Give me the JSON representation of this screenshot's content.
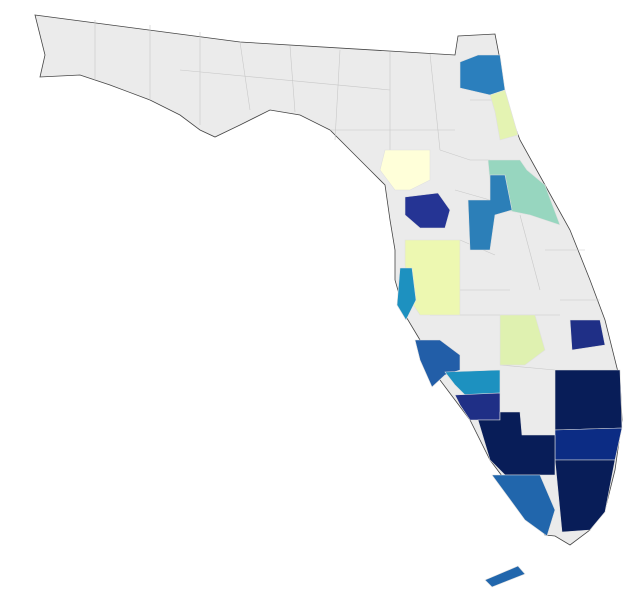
{
  "map": {
    "regions": [
      {
        "color": "#2b7fbd"
      },
      {
        "color": "#e4f3b2"
      },
      {
        "color": "#97d6bf"
      },
      {
        "color": "#ffffd9"
      },
      {
        "color": "#253494"
      },
      {
        "color": "#2c7fb8"
      },
      {
        "color": "#edf8b1"
      },
      {
        "color": "#1d91c0"
      },
      {
        "color": "#dff1b0"
      },
      {
        "color": "#1f2f86"
      },
      {
        "color": "#225ea8"
      },
      {
        "color": "#1d91c0"
      },
      {
        "color": "#1f2f86"
      },
      {
        "color": "#081d58"
      },
      {
        "color": "#0c2c84"
      },
      {
        "color": "#081d58"
      },
      {
        "color": "#081d58"
      },
      {
        "color": "#2166ac"
      },
      {
        "color": "#2166ac"
      }
    ]
  }
}
